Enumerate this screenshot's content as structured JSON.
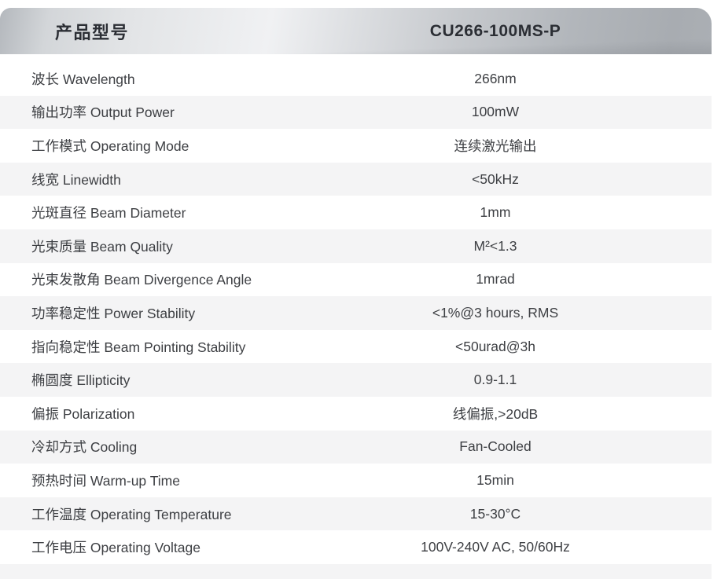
{
  "header": {
    "label": "产品型号",
    "model": "CU266-100MS-P"
  },
  "rows": [
    {
      "label": "波长 Wavelength",
      "value": "266nm"
    },
    {
      "label": "输出功率 Output Power",
      "value": "100mW"
    },
    {
      "label": "工作模式 Operating Mode",
      "value": "连续激光输出"
    },
    {
      "label": "线宽 Linewidth",
      "value": "<50kHz"
    },
    {
      "label": "光斑直径 Beam Diameter",
      "value": "1mm"
    },
    {
      "label": "光束质量 Beam Quality",
      "value": "M²<1.3"
    },
    {
      "label": "光束发散角 Beam Divergence Angle",
      "value": "1mrad"
    },
    {
      "label": "功率稳定性 Power Stability",
      "value": "<1%@3 hours, RMS"
    },
    {
      "label": "指向稳定性 Beam Pointing Stability",
      "value": "<50urad@3h"
    },
    {
      "label": "椭圆度 Ellipticity",
      "value": "0.9-1.1"
    },
    {
      "label": "偏振 Polarization",
      "value": "线偏振,>20dB"
    },
    {
      "label": "冷却方式 Cooling",
      "value": "Fan-Cooled"
    },
    {
      "label": "预热时间 Warm-up Time",
      "value": "15min"
    },
    {
      "label": "工作温度 Operating Temperature",
      "value": "15-30°C"
    },
    {
      "label": "工作电压 Operating Voltage",
      "value": "100V-240V AC, 50/60Hz"
    }
  ],
  "colors": {
    "header_text": "#2b2e34",
    "row_text": "#3d3f43",
    "alt_row_bg": "#f4f4f5",
    "header_metal_light": "#f0f1f3",
    "header_metal_dark": "#a8acb1"
  }
}
